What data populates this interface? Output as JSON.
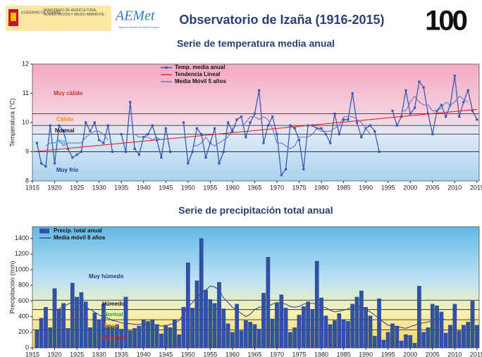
{
  "header": {
    "gov_line1": "GOBIERNO DE ESPAÑA",
    "gov_line2": "MINISTERIO DE AGRICULTURA, ALIMENTACIÓN Y MEDIO AMBIENTE",
    "agency": "AEMet",
    "agency_sub": "Agencia Estatal de Meteorología",
    "title": "Observatorio de Izaña (1916-2015)",
    "anniversary": "100"
  },
  "chart_data": [
    {
      "type": "line",
      "title": "Serie de temperatura media anual",
      "y_label": "Temperatura (°C)",
      "x": [
        1916,
        1917,
        1918,
        1919,
        1920,
        1921,
        1922,
        1923,
        1924,
        1925,
        1926,
        1927,
        1928,
        1929,
        1930,
        1931,
        1932,
        1933,
        1934,
        1935,
        1936,
        1937,
        1938,
        1939,
        1940,
        1941,
        1942,
        1943,
        1944,
        1945,
        1946,
        1947,
        1948,
        1949,
        1950,
        1951,
        1952,
        1953,
        1954,
        1955,
        1956,
        1957,
        1958,
        1959,
        1960,
        1961,
        1962,
        1963,
        1964,
        1965,
        1966,
        1967,
        1968,
        1969,
        1970,
        1971,
        1972,
        1973,
        1974,
        1975,
        1976,
        1977,
        1978,
        1979,
        1980,
        1981,
        1982,
        1983,
        1984,
        1985,
        1986,
        1987,
        1988,
        1989,
        1990,
        1991,
        1992,
        1993,
        1994,
        1995,
        1996,
        1997,
        1998,
        1999,
        2000,
        2001,
        2002,
        2003,
        2004,
        2005,
        2006,
        2007,
        2008,
        2009,
        2010,
        2011,
        2012,
        2013,
        2014,
        2015
      ],
      "series": [
        {
          "name": "Temp. media anual",
          "type": "line",
          "marker": true,
          "color": "#3a5bb5",
          "values": [
            9.3,
            8.6,
            8.5,
            9.9,
            8.6,
            9.9,
            9.7,
            9.1,
            8.8,
            8.9,
            9.0,
            10.0,
            9.7,
            10.0,
            9.4,
            9.3,
            9.9,
            9.0,
            null,
            9.6,
            9.0,
            10.7,
            9.1,
            8.9,
            9.5,
            9.6,
            9.9,
            9.4,
            8.8,
            9.8,
            9.0,
            null,
            null,
            10.0,
            8.6,
            9.0,
            9.8,
            9.6,
            8.8,
            9.3,
            9.8,
            8.6,
            9.0,
            10.0,
            9.7,
            10.1,
            10.2,
            9.5,
            10.0,
            10.3,
            11.1,
            9.3,
            9.9,
            10.2,
            9.6,
            8.2,
            8.4,
            9.9,
            9.8,
            9.4,
            8.4,
            9.9,
            9.9,
            9.8,
            9.8,
            9.6,
            9.3,
            10.3,
            9.6,
            10.1,
            10.1,
            11.0,
            10.0,
            9.5,
            9.8,
            9.9,
            9.7,
            9.0,
            null,
            null,
            10.4,
            9.9,
            10.2,
            11.1,
            10.3,
            10.5,
            11.4,
            11.2,
            10.3,
            9.6,
            10.4,
            10.6,
            10.2,
            10.6,
            11.6,
            10.2,
            10.7,
            11.1,
            10.4,
            10.1
          ]
        },
        {
          "name": "Tendencia Lineal",
          "type": "line",
          "color": "#e8262b",
          "x": [
            1915,
            2015
          ],
          "values": [
            9.0,
            10.45
          ]
        },
        {
          "name": "Media Móvil 5 años",
          "type": "line",
          "color": "#6676c8",
          "values": [
            null,
            null,
            9.2,
            9.3,
            9.3,
            9.4,
            9.2,
            9.3,
            9.3,
            9.3,
            9.3,
            9.5,
            9.6,
            9.7,
            9.7,
            9.6,
            9.4,
            null,
            null,
            null,
            null,
            9.6,
            9.6,
            9.5,
            9.5,
            9.5,
            9.4,
            9.5,
            9.4,
            null,
            null,
            null,
            null,
            null,
            null,
            9.2,
            9.2,
            9.3,
            9.5,
            9.3,
            9.2,
            9.3,
            9.4,
            9.5,
            9.8,
            9.9,
            9.9,
            10.0,
            10.2,
            10.2,
            10.1,
            10.2,
            10.1,
            9.8,
            9.3,
            9.3,
            9.2,
            9.1,
            9.2,
            9.5,
            9.5,
            9.5,
            9.6,
            9.8,
            9.7,
            9.7,
            9.7,
            9.8,
            9.9,
            10.2,
            10.2,
            10.2,
            10.1,
            10.0,
            9.8,
            9.6,
            null,
            null,
            null,
            null,
            null,
            null,
            10.4,
            10.4,
            10.7,
            10.9,
            10.7,
            10.6,
            10.6,
            10.4,
            10.4,
            10.5,
            10.7,
            10.6,
            10.7,
            10.9,
            10.8,
            10.7,
            null,
            null
          ]
        }
      ],
      "xlim": [
        1915,
        2015.5
      ],
      "xticks": [
        1915,
        1920,
        1925,
        1930,
        1935,
        1940,
        1945,
        1950,
        1955,
        1960,
        1965,
        1970,
        1975,
        1980,
        1985,
        1990,
        1995,
        2000,
        2005,
        2010,
        2015
      ],
      "ylim": [
        8,
        12
      ],
      "yticks": [
        8,
        9,
        10,
        11,
        12
      ],
      "thresholds": [
        9.0,
        9.6,
        9.9,
        10.3
      ],
      "class_labels": [
        {
          "text": "Muy cálido",
          "color": "#c0392b"
        },
        {
          "text": "Cálido",
          "color": "#f08a1c"
        },
        {
          "text": "Normal",
          "color": "#111111"
        },
        {
          "text": "Frío",
          "color": "#1fb5d6"
        },
        {
          "text": "Muy frío",
          "color": "#26348a"
        }
      ]
    },
    {
      "type": "bar",
      "title": "Serie de precipitación total anual",
      "y_label": "Precipitación (mm)",
      "x": [
        1916,
        1917,
        1918,
        1919,
        1920,
        1921,
        1922,
        1923,
        1924,
        1925,
        1926,
        1927,
        1928,
        1929,
        1930,
        1931,
        1932,
        1933,
        1934,
        1935,
        1936,
        1937,
        1938,
        1939,
        1940,
        1941,
        1942,
        1943,
        1944,
        1945,
        1946,
        1947,
        1948,
        1949,
        1950,
        1951,
        1952,
        1953,
        1954,
        1955,
        1956,
        1957,
        1958,
        1959,
        1960,
        1961,
        1962,
        1963,
        1964,
        1965,
        1966,
        1967,
        1968,
        1969,
        1970,
        1971,
        1972,
        1973,
        1974,
        1975,
        1976,
        1977,
        1978,
        1979,
        1980,
        1981,
        1982,
        1983,
        1984,
        1985,
        1986,
        1987,
        1988,
        1989,
        1990,
        1991,
        1992,
        1993,
        1994,
        1995,
        1996,
        1997,
        1998,
        1999,
        2000,
        2001,
        2002,
        2003,
        2004,
        2005,
        2006,
        2007,
        2008,
        2009,
        2010,
        2011,
        2012,
        2013,
        2014,
        2015
      ],
      "series": [
        {
          "name": "Precip. total anual",
          "type": "bar",
          "color": "#2f52a8",
          "values": [
            230,
            380,
            520,
            260,
            760,
            490,
            570,
            250,
            830,
            650,
            710,
            590,
            260,
            450,
            360,
            560,
            290,
            280,
            300,
            240,
            650,
            220,
            250,
            280,
            360,
            340,
            360,
            300,
            180,
            290,
            260,
            360,
            170,
            520,
            1090,
            510,
            860,
            1400,
            740,
            620,
            570,
            840,
            500,
            310,
            200,
            560,
            220,
            350,
            330,
            300,
            240,
            700,
            1160,
            370,
            580,
            680,
            510,
            200,
            260,
            420,
            530,
            590,
            490,
            1110,
            640,
            410,
            300,
            350,
            440,
            360,
            340,
            560,
            650,
            730,
            520,
            410,
            150,
            630,
            100,
            200,
            310,
            280,
            90,
            170,
            160,
            60,
            790,
            200,
            260,
            560,
            540,
            460,
            190,
            290,
            560,
            220,
            290,
            330,
            600,
            290
          ]
        },
        {
          "name": "Media móvil 8 años",
          "type": "line",
          "color": "#3a4a90",
          "values": [
            null,
            null,
            null,
            null,
            470,
            500,
            530,
            560,
            580,
            580,
            560,
            520,
            490,
            460,
            420,
            400,
            380,
            350,
            340,
            320,
            310,
            310,
            300,
            300,
            310,
            300,
            290,
            290,
            280,
            280,
            300,
            310,
            350,
            430,
            520,
            580,
            650,
            700,
            740,
            790,
            780,
            740,
            640,
            580,
            520,
            480,
            440,
            400,
            430,
            490,
            520,
            520,
            530,
            560,
            580,
            570,
            560,
            530,
            520,
            530,
            560,
            570,
            570,
            560,
            540,
            510,
            480,
            460,
            470,
            480,
            500,
            520,
            530,
            530,
            490,
            460,
            420,
            370,
            330,
            290,
            280,
            270,
            260,
            250,
            270,
            290,
            310,
            320,
            330,
            350,
            380,
            370,
            360,
            360,
            370,
            null,
            null,
            null,
            null,
            null
          ]
        }
      ],
      "xlim": [
        1915,
        2015.5
      ],
      "xticks": [
        1915,
        1920,
        1925,
        1930,
        1935,
        1940,
        1945,
        1950,
        1955,
        1960,
        1965,
        1970,
        1975,
        1980,
        1985,
        1990,
        1995,
        2000,
        2005,
        2010,
        2015
      ],
      "ylim": [
        0,
        1550
      ],
      "yticks": [
        0,
        200,
        400,
        600,
        800,
        1000,
        1200,
        1400
      ],
      "thresholds": [
        230,
        360,
        490,
        610
      ],
      "class_labels": [
        {
          "text": "Muy húmedo",
          "color": "#26348a"
        },
        {
          "text": "Húmedo",
          "color": "#111111"
        },
        {
          "text": "Normal",
          "color": "#1e9e3a"
        },
        {
          "text": "Seco",
          "color": "#f08a1c"
        },
        {
          "text": "Muy seco",
          "color": "#d62020"
        }
      ]
    }
  ]
}
